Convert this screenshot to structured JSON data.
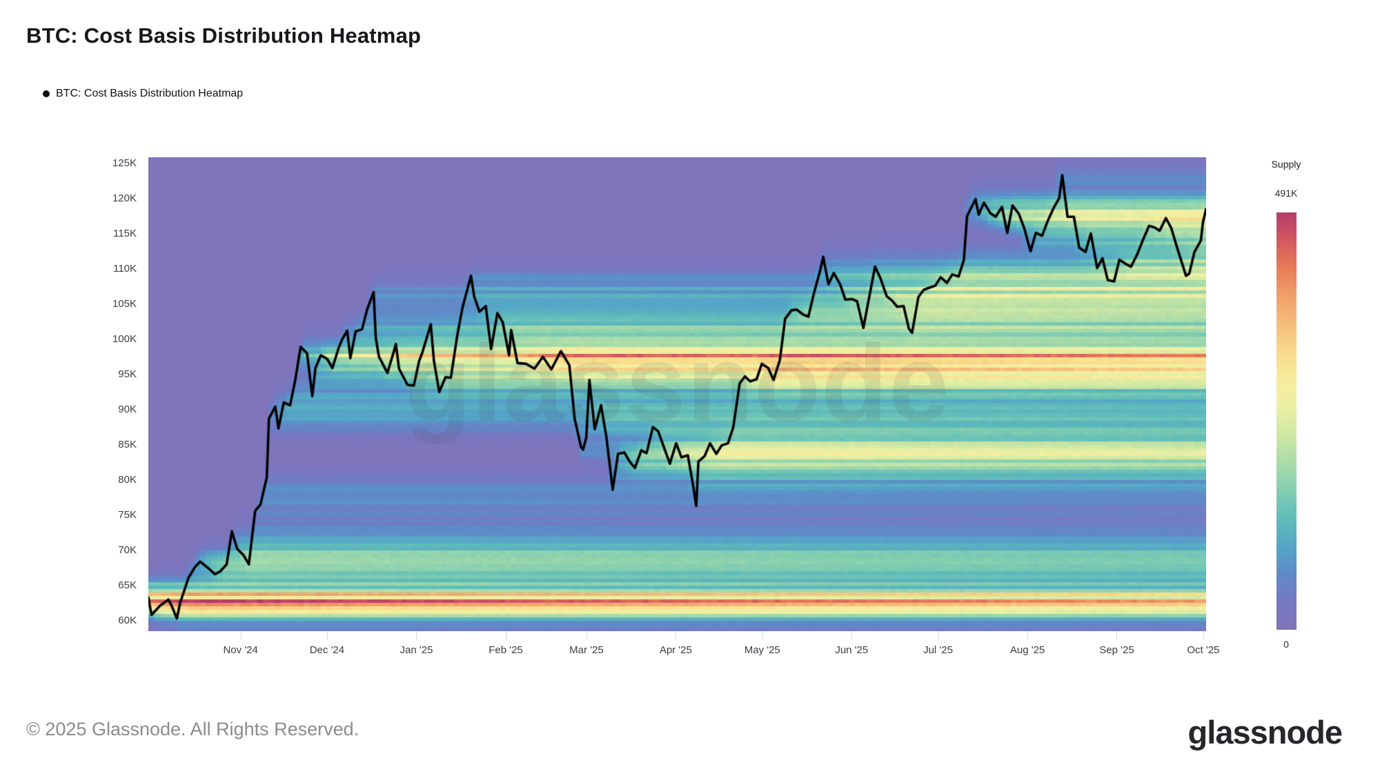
{
  "header": {
    "title": "BTC: Cost Basis Distribution Heatmap",
    "legend_label": "BTC: Cost Basis Distribution Heatmap"
  },
  "watermark": {
    "text": "glassnode"
  },
  "footer": {
    "copyright": "© 2025 Glassnode. All Rights Reserved.",
    "brand": "glassnode"
  },
  "colorbar": {
    "title": "Supply",
    "max_label": "491K",
    "min_label": "0",
    "stops_bottom_to_top": [
      "#8074ba",
      "#7678c2",
      "#5f8ac8",
      "#55a5c8",
      "#5fbcba",
      "#83ceb0",
      "#abdcaa",
      "#cfe7a3",
      "#ecf0a4",
      "#f8ec9d",
      "#f9d98b",
      "#f6bc7b",
      "#f0a068",
      "#e87c58",
      "#d4585f",
      "#b43c69"
    ]
  },
  "colors": {
    "background": "#ffffff",
    "chart_base_purple": "#8074ba",
    "price_line": "#000000",
    "axis_text": "#3c3c46",
    "tick_mark": "#d9d9de"
  },
  "axes": {
    "price_min_k": 58.5,
    "price_max_k": 125.85,
    "y_ticks": [
      {
        "label": "125K",
        "value": 125
      },
      {
        "label": "120K",
        "value": 120
      },
      {
        "label": "115K",
        "value": 115
      },
      {
        "label": "110K",
        "value": 110
      },
      {
        "label": "105K",
        "value": 105
      },
      {
        "label": "100K",
        "value": 100
      },
      {
        "label": "95K",
        "value": 95
      },
      {
        "label": "90K",
        "value": 90
      },
      {
        "label": "85K",
        "value": 85
      },
      {
        "label": "80K",
        "value": 80
      },
      {
        "label": "75K",
        "value": 75
      },
      {
        "label": "70K",
        "value": 70
      },
      {
        "label": "65K",
        "value": 65
      },
      {
        "label": "60K",
        "value": 60
      }
    ],
    "x_ticks": [
      {
        "label": "Nov '24",
        "t": 0.0872
      },
      {
        "label": "Dec '24",
        "t": 0.1689
      },
      {
        "label": "Jan '25",
        "t": 0.2534
      },
      {
        "label": "Feb '25",
        "t": 0.3379
      },
      {
        "label": "Mar '25",
        "t": 0.4142
      },
      {
        "label": "Apr '25",
        "t": 0.4986
      },
      {
        "label": "May '25",
        "t": 0.5804
      },
      {
        "label": "Jun '25",
        "t": 0.6649
      },
      {
        "label": "Jul '25",
        "t": 0.7466
      },
      {
        "label": "Aug '25",
        "t": 0.8311
      },
      {
        "label": "Sep '25",
        "t": 0.9155
      },
      {
        "label": "Oct '25",
        "t": 0.9973
      }
    ]
  },
  "chart_data": {
    "type": "heatmap",
    "title": "BTC: Cost Basis Distribution Heatmap",
    "x_range": [
      "Sep 30 2024",
      "Oct 2025"
    ],
    "y_range_usd_k": [
      58.5,
      125.85
    ],
    "supply_scale_max_label": "491K",
    "grid": {
      "cols": 184,
      "rows": 135
    },
    "price_line": {
      "name": "BTC price (USD thousands), x = fraction of time axis",
      "points": [
        [
          0,
          63.3
        ],
        [
          0.003,
          60.8
        ],
        [
          0.011,
          62.1
        ],
        [
          0.019,
          63.0
        ],
        [
          0.022,
          62.1
        ],
        [
          0.027,
          60.3
        ],
        [
          0.03,
          62.5
        ],
        [
          0.038,
          66.1
        ],
        [
          0.044,
          67.6
        ],
        [
          0.049,
          68.4
        ],
        [
          0.057,
          67.4
        ],
        [
          0.063,
          66.6
        ],
        [
          0.068,
          67.0
        ],
        [
          0.074,
          68.0
        ],
        [
          0.079,
          72.7
        ],
        [
          0.084,
          70.2
        ],
        [
          0.09,
          69.3
        ],
        [
          0.095,
          68.0
        ],
        [
          0.101,
          75.6
        ],
        [
          0.106,
          76.5
        ],
        [
          0.112,
          80.4
        ],
        [
          0.114,
          88.7
        ],
        [
          0.12,
          90.4
        ],
        [
          0.123,
          87.3
        ],
        [
          0.128,
          91.0
        ],
        [
          0.134,
          90.6
        ],
        [
          0.139,
          94.3
        ],
        [
          0.144,
          98.9
        ],
        [
          0.15,
          98.0
        ],
        [
          0.155,
          91.9
        ],
        [
          0.158,
          95.9
        ],
        [
          0.163,
          97.7
        ],
        [
          0.169,
          97.2
        ],
        [
          0.174,
          95.9
        ],
        [
          0.18,
          98.8
        ],
        [
          0.183,
          99.9
        ],
        [
          0.188,
          101.2
        ],
        [
          0.191,
          97.3
        ],
        [
          0.196,
          101.1
        ],
        [
          0.202,
          101.4
        ],
        [
          0.207,
          104.3
        ],
        [
          0.213,
          106.7
        ],
        [
          0.215,
          100.2
        ],
        [
          0.218,
          97.5
        ],
        [
          0.226,
          95.2
        ],
        [
          0.232,
          98.2
        ],
        [
          0.234,
          99.3
        ],
        [
          0.237,
          95.8
        ],
        [
          0.245,
          93.5
        ],
        [
          0.251,
          93.4
        ],
        [
          0.256,
          96.9
        ],
        [
          0.259,
          98.1
        ],
        [
          0.267,
          102.1
        ],
        [
          0.27,
          96.9
        ],
        [
          0.275,
          92.5
        ],
        [
          0.281,
          94.6
        ],
        [
          0.286,
          94.5
        ],
        [
          0.292,
          100.5
        ],
        [
          0.297,
          104.5
        ],
        [
          0.305,
          109.0
        ],
        [
          0.308,
          106.1
        ],
        [
          0.313,
          103.9
        ],
        [
          0.319,
          104.7
        ],
        [
          0.324,
          98.6
        ],
        [
          0.33,
          103.7
        ],
        [
          0.335,
          102.4
        ],
        [
          0.341,
          97.7
        ],
        [
          0.343,
          101.3
        ],
        [
          0.349,
          96.6
        ],
        [
          0.357,
          96.5
        ],
        [
          0.365,
          95.8
        ],
        [
          0.373,
          97.5
        ],
        [
          0.381,
          95.7
        ],
        [
          0.39,
          98.3
        ],
        [
          0.398,
          96.3
        ],
        [
          0.403,
          88.7
        ],
        [
          0.409,
          84.7
        ],
        [
          0.411,
          84.3
        ],
        [
          0.414,
          86.0
        ],
        [
          0.417,
          94.2
        ],
        [
          0.422,
          87.2
        ],
        [
          0.428,
          90.6
        ],
        [
          0.433,
          86.1
        ],
        [
          0.439,
          78.6
        ],
        [
          0.444,
          83.7
        ],
        [
          0.45,
          83.9
        ],
        [
          0.455,
          82.6
        ],
        [
          0.46,
          81.7
        ],
        [
          0.466,
          84.2
        ],
        [
          0.471,
          83.8
        ],
        [
          0.477,
          87.5
        ],
        [
          0.482,
          86.9
        ],
        [
          0.488,
          84.4
        ],
        [
          0.493,
          82.3
        ],
        [
          0.499,
          85.2
        ],
        [
          0.504,
          83.2
        ],
        [
          0.51,
          83.5
        ],
        [
          0.515,
          79.2
        ],
        [
          0.518,
          76.3
        ],
        [
          0.52,
          82.6
        ],
        [
          0.526,
          83.4
        ],
        [
          0.531,
          85.2
        ],
        [
          0.537,
          83.7
        ],
        [
          0.542,
          84.9
        ],
        [
          0.548,
          85.2
        ],
        [
          0.553,
          87.5
        ],
        [
          0.559,
          93.7
        ],
        [
          0.564,
          94.7
        ],
        [
          0.569,
          94.0
        ],
        [
          0.575,
          94.3
        ],
        [
          0.58,
          96.5
        ],
        [
          0.586,
          95.9
        ],
        [
          0.591,
          94.2
        ],
        [
          0.597,
          97.0
        ],
        [
          0.602,
          102.9
        ],
        [
          0.608,
          104.1
        ],
        [
          0.613,
          104.2
        ],
        [
          0.619,
          103.5
        ],
        [
          0.624,
          103.2
        ],
        [
          0.629,
          106.4
        ],
        [
          0.635,
          109.7
        ],
        [
          0.638,
          111.7
        ],
        [
          0.643,
          107.8
        ],
        [
          0.648,
          109.4
        ],
        [
          0.654,
          107.8
        ],
        [
          0.659,
          105.6
        ],
        [
          0.665,
          105.7
        ],
        [
          0.67,
          105.4
        ],
        [
          0.676,
          101.6
        ],
        [
          0.681,
          105.6
        ],
        [
          0.687,
          110.3
        ],
        [
          0.692,
          108.7
        ],
        [
          0.698,
          106.1
        ],
        [
          0.703,
          105.5
        ],
        [
          0.708,
          104.6
        ],
        [
          0.714,
          104.7
        ],
        [
          0.719,
          101.5
        ],
        [
          0.722,
          100.9
        ],
        [
          0.728,
          106.0
        ],
        [
          0.733,
          107.0
        ],
        [
          0.738,
          107.3
        ],
        [
          0.744,
          107.6
        ],
        [
          0.749,
          108.8
        ],
        [
          0.755,
          108.0
        ],
        [
          0.76,
          109.2
        ],
        [
          0.766,
          108.9
        ],
        [
          0.771,
          111.3
        ],
        [
          0.774,
          117.5
        ],
        [
          0.782,
          119.9
        ],
        [
          0.785,
          117.7
        ],
        [
          0.79,
          119.4
        ],
        [
          0.796,
          117.9
        ],
        [
          0.801,
          117.4
        ],
        [
          0.807,
          118.8
        ],
        [
          0.812,
          115.1
        ],
        [
          0.817,
          119.0
        ],
        [
          0.823,
          117.8
        ],
        [
          0.828,
          115.8
        ],
        [
          0.834,
          112.5
        ],
        [
          0.839,
          115.1
        ],
        [
          0.845,
          114.7
        ],
        [
          0.85,
          116.7
        ],
        [
          0.856,
          118.7
        ],
        [
          0.861,
          120.0
        ],
        [
          0.864,
          123.3
        ],
        [
          0.869,
          117.4
        ],
        [
          0.875,
          117.4
        ],
        [
          0.88,
          113.0
        ],
        [
          0.886,
          112.4
        ],
        [
          0.891,
          115.0
        ],
        [
          0.897,
          110.1
        ],
        [
          0.902,
          111.5
        ],
        [
          0.907,
          108.4
        ],
        [
          0.913,
          108.2
        ],
        [
          0.918,
          111.3
        ],
        [
          0.924,
          110.7
        ],
        [
          0.929,
          110.3
        ],
        [
          0.935,
          112.1
        ],
        [
          0.94,
          114.0
        ],
        [
          0.946,
          116.1
        ],
        [
          0.951,
          115.9
        ],
        [
          0.956,
          115.4
        ],
        [
          0.962,
          117.2
        ],
        [
          0.967,
          115.8
        ],
        [
          0.973,
          112.8
        ],
        [
          0.981,
          109.0
        ],
        [
          0.984,
          109.3
        ],
        [
          0.989,
          112.4
        ],
        [
          0.995,
          114.0
        ],
        [
          0.997,
          116.6
        ],
        [
          1.0,
          118.5
        ]
      ]
    },
    "supply_zones": [
      {
        "p": 61.8,
        "t": 0.0,
        "s": 0.8,
        "w": 4.5
      },
      {
        "p": 63.6,
        "t": 0.0,
        "s": 0.6,
        "w": 1.5
      },
      {
        "p": 66.6,
        "t": 0.03,
        "s": 1.1,
        "w": 0.7
      },
      {
        "p": 69.6,
        "t": 0.05,
        "s": 0.7,
        "w": 0.8
      },
      {
        "p": 97.6,
        "t": 0.14,
        "s": 0.9,
        "w": 2.2
      },
      {
        "p": 95.1,
        "t": 0.15,
        "s": 0.9,
        "w": 1.0
      },
      {
        "p": 100.8,
        "t": 0.19,
        "s": 0.6,
        "w": 0.6
      },
      {
        "p": 95.6,
        "t": 0.34,
        "s": 2.6,
        "w": 0.3
      },
      {
        "p": 84.2,
        "t": 0.41,
        "s": 1.0,
        "w": 0.6
      },
      {
        "p": 81.6,
        "t": 0.44,
        "s": 0.7,
        "w": 0.5
      },
      {
        "p": 93.6,
        "t": 0.56,
        "s": 0.8,
        "w": 1.5
      },
      {
        "p": 104.6,
        "t": 0.6,
        "s": 1.2,
        "w": 0.9
      },
      {
        "p": 107.1,
        "t": 0.68,
        "s": 0.8,
        "w": 0.7
      },
      {
        "p": 110.1,
        "t": 0.77,
        "s": 0.8,
        "w": 0.7
      },
      {
        "p": 116.9,
        "t": 0.79,
        "s": 0.8,
        "w": 1.0
      },
      {
        "p": 118.0,
        "t": 0.85,
        "s": 0.5,
        "w": 0.7
      }
    ]
  }
}
